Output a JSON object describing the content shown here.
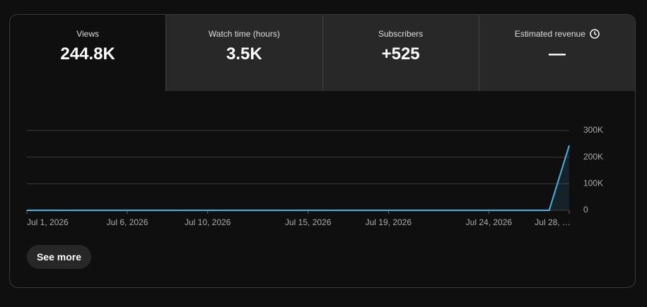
{
  "tabs": [
    {
      "label": "Views",
      "value": "244.8K"
    },
    {
      "label": "Watch time (hours)",
      "value": "3.5K"
    },
    {
      "label": "Subscribers",
      "value": "+525"
    },
    {
      "label": "Estimated revenue",
      "value": "—"
    }
  ],
  "chart_data": {
    "type": "line",
    "categories": [
      "Jul 1, 2026",
      null,
      null,
      null,
      null,
      "Jul 6, 2026",
      null,
      null,
      null,
      "Jul 10, 2026",
      null,
      null,
      null,
      null,
      "Jul 15, 2026",
      null,
      null,
      null,
      "Jul 19, 2026",
      null,
      null,
      null,
      null,
      "Jul 24, 2026",
      null,
      null,
      null,
      "Jul 28, …"
    ],
    "series": [
      {
        "name": "Views",
        "color": "#41b4e6",
        "values": [
          0,
          0,
          0,
          0,
          0,
          0,
          0,
          0,
          0,
          0,
          0,
          0,
          0,
          0,
          0,
          0,
          0,
          0,
          0,
          0,
          0,
          0,
          0,
          0,
          0,
          0,
          0,
          244000
        ]
      }
    ],
    "ylim": [
      0,
      300000
    ],
    "yticks": [
      0,
      {
        "value": 100000,
        "label": "100K"
      },
      {
        "value": 200000,
        "label": "200K"
      },
      {
        "value": 300000,
        "label": "300K"
      }
    ],
    "grid": true
  },
  "button": "See more"
}
